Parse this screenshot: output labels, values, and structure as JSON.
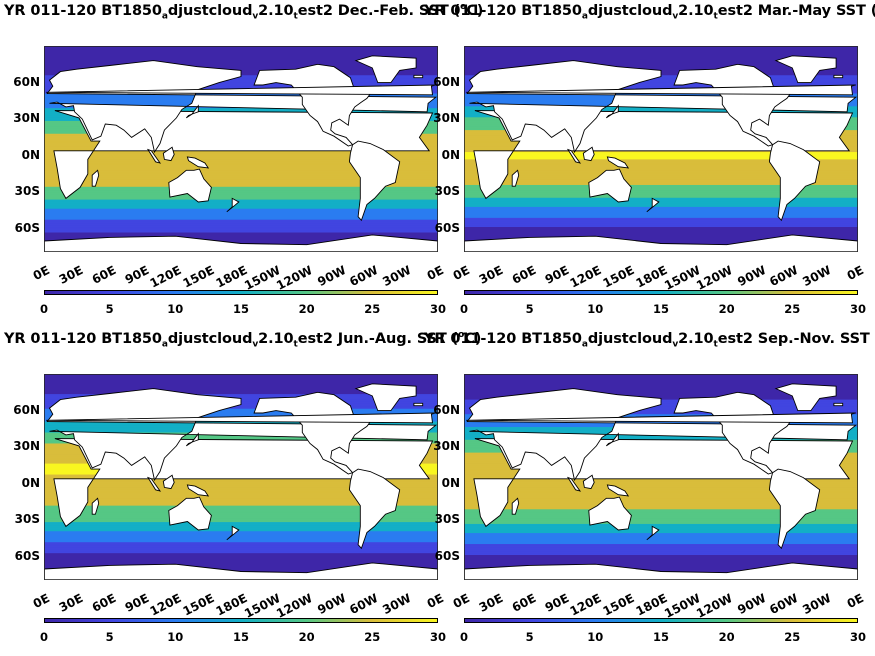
{
  "figure": {
    "panels": [
      {
        "title_parts": [
          "YR 011-120 BT1850",
          "a",
          "djustcloud",
          "v",
          "2.10",
          "t",
          "est2 Dec.-Feb. SST (",
          "o",
          "C)"
        ],
        "season": "Dec.-Feb."
      },
      {
        "title_parts": [
          "YR 011-120 BT1850",
          "a",
          "djustcloud",
          "v",
          "2.10",
          "t",
          "est2 Mar.-May SST (",
          "o",
          "C)"
        ],
        "season": "Mar.-May"
      },
      {
        "title_parts": [
          "YR 011-120 BT1850",
          "a",
          "djustcloud",
          "v",
          "2.10",
          "t",
          "est2 Jun.-Aug. SST (",
          "o",
          "C)"
        ],
        "season": "Jun.-Aug."
      },
      {
        "title_parts": [
          "YR 011-120 BT1850",
          "a",
          "djustcloud",
          "v",
          "2.10",
          "t",
          "est2 Sep.-Nov. SST (",
          "o",
          "C)"
        ],
        "season": "Sep.-Nov."
      }
    ],
    "lat_labels": [
      "60N",
      "30N",
      "0N",
      "30S",
      "60S"
    ],
    "lon_labels": [
      "0E",
      "30E",
      "60E",
      "90E",
      "120E",
      "150E",
      "180E",
      "150W",
      "120W",
      "90W",
      "60W",
      "30W",
      "0E"
    ],
    "colorbar_ticks": [
      "0",
      "5",
      "10",
      "15",
      "20",
      "25",
      "30"
    ],
    "colors": {
      "cold": "#3a2fa8",
      "cool": "#2a6fdc",
      "mid": "#1aa5a0",
      "warm": "#9bc93c",
      "hot": "#f5d33a",
      "land": "#ffffff",
      "coast": "#000000"
    }
  },
  "chart_data": [
    {
      "type": "heatmap",
      "title": "YR 011-120 BT1850adjustcloudv2.10test2 Dec.-Feb. SST (oC)",
      "xlabel": "",
      "ylabel": "",
      "x_ticks": [
        "0E",
        "30E",
        "60E",
        "90E",
        "120E",
        "150E",
        "180E",
        "150W",
        "120W",
        "90W",
        "60W",
        "30W",
        "0E"
      ],
      "y_ticks": [
        "60N",
        "30N",
        "0N",
        "30S",
        "60S"
      ],
      "colorbar": {
        "range": [
          0,
          30
        ],
        "ticks": [
          0,
          5,
          10,
          15,
          20,
          25,
          30
        ],
        "colormap": "parula"
      },
      "zonal_mean_sst_by_lat": {
        "lat": [
          75,
          60,
          45,
          30,
          15,
          0,
          -15,
          -30,
          -45,
          -60,
          -75
        ],
        "sst": [
          0,
          4,
          10,
          17,
          24,
          27,
          27,
          21,
          12,
          3,
          0
        ]
      }
    },
    {
      "type": "heatmap",
      "title": "YR 011-120 BT1850adjustcloudv2.10test2 Mar.-May SST (oC)",
      "xlabel": "",
      "ylabel": "",
      "x_ticks": [
        "0E",
        "30E",
        "60E",
        "90E",
        "120E",
        "150E",
        "180E",
        "150W",
        "120W",
        "90W",
        "60W",
        "30W",
        "0E"
      ],
      "y_ticks": [
        "60N",
        "30N",
        "0N",
        "30S",
        "60S"
      ],
      "colorbar": {
        "range": [
          0,
          30
        ],
        "ticks": [
          0,
          5,
          10,
          15,
          20,
          25,
          30
        ],
        "colormap": "parula"
      },
      "zonal_mean_sst_by_lat": {
        "lat": [
          75,
          60,
          45,
          30,
          15,
          0,
          -15,
          -30,
          -45,
          -60,
          -75
        ],
        "sst": [
          0,
          4,
          10,
          18,
          25,
          28,
          26,
          20,
          11,
          2,
          0
        ]
      }
    },
    {
      "type": "heatmap",
      "title": "YR 011-120 BT1850adjustcloudv2.10test2 Jun.-Aug. SST (oC)",
      "xlabel": "",
      "ylabel": "",
      "x_ticks": [
        "0E",
        "30E",
        "60E",
        "90E",
        "120E",
        "150E",
        "180E",
        "150W",
        "120W",
        "90W",
        "60W",
        "30W",
        "0E"
      ],
      "y_ticks": [
        "60N",
        "30N",
        "0N",
        "30S",
        "60S"
      ],
      "colorbar": {
        "range": [
          0,
          30
        ],
        "ticks": [
          0,
          5,
          10,
          15,
          20,
          25,
          30
        ],
        "colormap": "parula"
      },
      "zonal_mean_sst_by_lat": {
        "lat": [
          75,
          60,
          45,
          30,
          15,
          0,
          -15,
          -30,
          -45,
          -60,
          -75
        ],
        "sst": [
          2,
          8,
          16,
          24,
          28,
          27,
          24,
          18,
          9,
          1,
          0
        ]
      }
    },
    {
      "type": "heatmap",
      "title": "YR 011-120 BT1850adjustcloudv2.10test2 Sep.-Nov. SST (oC)",
      "xlabel": "",
      "ylabel": "",
      "x_ticks": [
        "0E",
        "30E",
        "60E",
        "90E",
        "120E",
        "150E",
        "180E",
        "150W",
        "120W",
        "90W",
        "60W",
        "30W",
        "0E"
      ],
      "y_ticks": [
        "60N",
        "30N",
        "0N",
        "30S",
        "60S"
      ],
      "colorbar": {
        "range": [
          0,
          30
        ],
        "ticks": [
          0,
          5,
          10,
          15,
          20,
          25,
          30
        ],
        "colormap": "parula"
      },
      "zonal_mean_sst_by_lat": {
        "lat": [
          75,
          60,
          45,
          30,
          15,
          0,
          -15,
          -30,
          -45,
          -60,
          -75
        ],
        "sst": [
          0,
          6,
          13,
          21,
          27,
          27,
          25,
          19,
          10,
          2,
          0
        ]
      }
    }
  ]
}
